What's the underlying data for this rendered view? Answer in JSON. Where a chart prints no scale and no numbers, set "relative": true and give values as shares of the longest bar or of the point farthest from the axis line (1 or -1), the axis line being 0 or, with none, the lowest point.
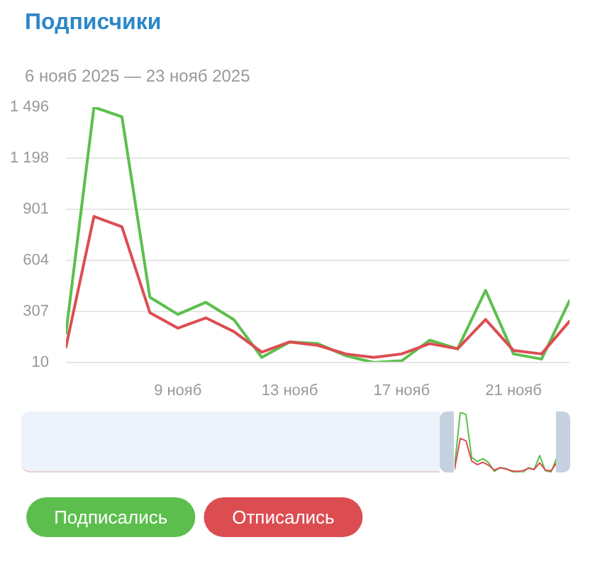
{
  "chart_data": [
    {
      "type": "line",
      "title": "Подписчики",
      "subtitle": "6 нояб 2025 — 23 нояб 2025",
      "x": [
        "2025-11-05",
        "2025-11-06",
        "2025-11-07",
        "2025-11-08",
        "2025-11-09",
        "2025-11-10",
        "2025-11-11",
        "2025-11-12",
        "2025-11-13",
        "2025-11-14",
        "2025-11-15",
        "2025-11-16",
        "2025-11-17",
        "2025-11-18",
        "2025-11-19",
        "2025-11-20",
        "2025-11-21",
        "2025-11-22",
        "2025-11-23"
      ],
      "xlim": [
        "2025-11-05",
        "2025-11-23"
      ],
      "xticks": [
        {
          "value": "2025-11-09",
          "label": "9 нояб"
        },
        {
          "value": "2025-11-13",
          "label": "13 нояб"
        },
        {
          "value": "2025-11-17",
          "label": "17 нояб"
        },
        {
          "value": "2025-11-21",
          "label": "21 нояб"
        }
      ],
      "ylim": [
        10,
        1496
      ],
      "yticks": [
        10,
        307,
        604,
        901,
        {
          "value": 1198,
          "label": "1 198"
        },
        {
          "value": 1496,
          "label": "1 496"
        }
      ],
      "grid": "y",
      "legend": "bottom",
      "series": [
        {
          "name": "Подписались",
          "color": "#5cbf4d",
          "values": [
            180,
            1496,
            1440,
            390,
            290,
            360,
            260,
            40,
            130,
            120,
            50,
            10,
            20,
            140,
            90,
            430,
            60,
            30,
            370
          ]
        },
        {
          "name": "Отписались",
          "color": "#dc4d52",
          "values": [
            100,
            860,
            800,
            300,
            210,
            270,
            190,
            70,
            130,
            110,
            60,
            40,
            60,
            120,
            90,
            260,
            80,
            60,
            250
          ]
        }
      ]
    },
    {
      "type": "line",
      "relative": true,
      "tick_labels": false,
      "categories": [
        null,
        null,
        null,
        null,
        null,
        null,
        null,
        null,
        null,
        null,
        null,
        null,
        null,
        null,
        null,
        null,
        null,
        null,
        null
      ],
      "series": [
        {
          "color": "#5cbf4d",
          "values": [
            0.12,
            1,
            0.96,
            0.26,
            0.19,
            0.24,
            0.17,
            0.03,
            0.09,
            0.08,
            0.03,
            0.01,
            0.01,
            0.09,
            0.06,
            0.29,
            0.04,
            0.02,
            0.25
          ]
        },
        {
          "color": "#dc4d52",
          "values": [
            0.07,
            0.57,
            0.53,
            0.2,
            0.14,
            0.18,
            0.13,
            0.05,
            0.09,
            0.07,
            0.04,
            0.03,
            0.04,
            0.08,
            0.06,
            0.17,
            0.05,
            0.04,
            0.17
          ]
        }
      ]
    }
  ]
}
